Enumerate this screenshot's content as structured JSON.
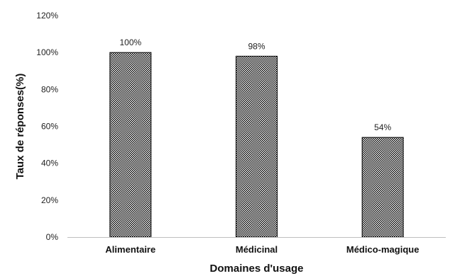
{
  "chart_data": {
    "type": "bar",
    "title": "",
    "xlabel": "Domaines d'usage",
    "ylabel": "Taux de réponses(%)",
    "categories": [
      "Alimentaire",
      "Médicinal",
      "Médico-magique"
    ],
    "values": [
      100,
      98,
      54
    ],
    "data_labels": [
      "100%",
      "98%",
      "54%"
    ],
    "ylim": [
      0,
      120
    ],
    "yticks": [
      0,
      20,
      40,
      60,
      80,
      100,
      120
    ],
    "ytick_labels": [
      "0%",
      "20%",
      "40%",
      "60%",
      "80%",
      "100%",
      "120%"
    ],
    "grid": false,
    "legend": "none",
    "bar_pattern": "checkered-black-white"
  }
}
